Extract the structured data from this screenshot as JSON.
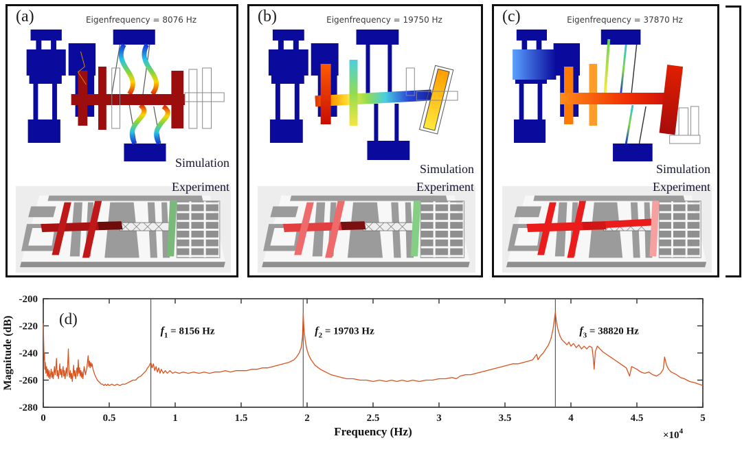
{
  "panels": [
    {
      "label": "(a)",
      "title": "Eigenfrequency = 8076 Hz",
      "eigenfrequency_hz": 8076,
      "sim_label": "Simulation",
      "exp_label": "Experiment",
      "colors": {
        "anchor": "#0a0a9c",
        "beam": "#9c0d0d",
        "experiment_cross": "#a81212",
        "experiment_side_bar": "#79b979"
      }
    },
    {
      "label": "(b)",
      "title": "Eigenfrequency = 19750 Hz",
      "eigenfrequency_hz": 19750,
      "sim_label": "Simulation",
      "exp_label": "Experiment",
      "colors": {
        "anchor": "#0a0a9c",
        "beam": "rainbow",
        "experiment_cross": "#e24040",
        "experiment_side_bar": "#84cf84"
      }
    },
    {
      "label": "(c)",
      "title": "Eigenfrequency = 37870 Hz",
      "eigenfrequency_hz": 37870,
      "sim_label": "Simulation",
      "exp_label": "Experiment",
      "colors": {
        "anchor": "#0a0a9c",
        "beam": "#ff8c1a",
        "experiment_cross": "#ea1c1c",
        "experiment_side_bar": "#f6a0a0"
      }
    }
  ],
  "chart_data": {
    "type": "line",
    "panel_label": "(d)",
    "xlabel": "Frequency (Hz)",
    "ylabel": "Magnitude (dB)",
    "x_scale_label": {
      "base": "×10",
      "exponent": "4"
    },
    "xlim": [
      0,
      50000
    ],
    "ylim": [
      -280,
      -200
    ],
    "x_ticks": {
      "values": [
        0,
        5000,
        10000,
        15000,
        20000,
        25000,
        30000,
        35000,
        40000,
        45000,
        50000
      ],
      "labels": [
        "0",
        "0.5",
        "1",
        "1.5",
        "2",
        "2.5",
        "3",
        "3.5",
        "4",
        "4.5",
        "5"
      ]
    },
    "y_ticks": {
      "values": [
        -200,
        -220,
        -240,
        -260,
        -280
      ],
      "labels": [
        "-200",
        "-220",
        "-240",
        "-260",
        "-280"
      ]
    },
    "line_color": "#d9531e",
    "marker_line_color": "#4a4a4a",
    "grid": false,
    "legend": false,
    "peaks": [
      {
        "x_hz": 8156,
        "sym": "f",
        "sub": "1",
        "text": " = 8156 Hz",
        "label_dx": 14,
        "label_db": -226
      },
      {
        "x_hz": 19703,
        "sym": "f",
        "sub": "2",
        "text": " = 19703 Hz",
        "label_dx": 17,
        "label_db": -226
      },
      {
        "x_hz": 38820,
        "sym": "f",
        "sub": "3",
        "text": " = 38820 Hz",
        "label_dx": 35,
        "label_db": -226
      }
    ],
    "points": [
      [
        0,
        -218
      ],
      [
        30,
        -232
      ],
      [
        60,
        -245
      ],
      [
        90,
        -240
      ],
      [
        120,
        -252
      ],
      [
        150,
        -247
      ],
      [
        200,
        -255
      ],
      [
        250,
        -250
      ],
      [
        300,
        -257
      ],
      [
        350,
        -252
      ],
      [
        400,
        -258
      ],
      [
        450,
        -253
      ],
      [
        500,
        -259
      ],
      [
        550,
        -256
      ],
      [
        600,
        -252
      ],
      [
        650,
        -258
      ],
      [
        700,
        -254
      ],
      [
        750,
        -259
      ],
      [
        800,
        -255
      ],
      [
        850,
        -250
      ],
      [
        900,
        -256
      ],
      [
        950,
        -252
      ],
      [
        1000,
        -244
      ],
      [
        1050,
        -257
      ],
      [
        1100,
        -253
      ],
      [
        1150,
        -259
      ],
      [
        1200,
        -255
      ],
      [
        1250,
        -248
      ],
      [
        1300,
        -256
      ],
      [
        1350,
        -252
      ],
      [
        1400,
        -258
      ],
      [
        1450,
        -254
      ],
      [
        1500,
        -250
      ],
      [
        1550,
        -257
      ],
      [
        1600,
        -253
      ],
      [
        1650,
        -259
      ],
      [
        1700,
        -255
      ],
      [
        1750,
        -251
      ],
      [
        1800,
        -257
      ],
      [
        1850,
        -249
      ],
      [
        1900,
        -237
      ],
      [
        1950,
        -254
      ],
      [
        2000,
        -258
      ],
      [
        2050,
        -253
      ],
      [
        2100,
        -259
      ],
      [
        2150,
        -255
      ],
      [
        2200,
        -261
      ],
      [
        2250,
        -256
      ],
      [
        2300,
        -249
      ],
      [
        2350,
        -257
      ],
      [
        2400,
        -253
      ],
      [
        2450,
        -259
      ],
      [
        2500,
        -255
      ],
      [
        2550,
        -251
      ],
      [
        2600,
        -257
      ],
      [
        2650,
        -245
      ],
      [
        2700,
        -255
      ],
      [
        2750,
        -251
      ],
      [
        2800,
        -257
      ],
      [
        2850,
        -253
      ],
      [
        2900,
        -258
      ],
      [
        2950,
        -254
      ],
      [
        3000,
        -259
      ],
      [
        3100,
        -250
      ],
      [
        3200,
        -256
      ],
      [
        3300,
        -251
      ],
      [
        3400,
        -242
      ],
      [
        3450,
        -250
      ],
      [
        3500,
        -246
      ],
      [
        3550,
        -251
      ],
      [
        3600,
        -247
      ],
      [
        3650,
        -250
      ],
      [
        3700,
        -248
      ],
      [
        3750,
        -251
      ],
      [
        3800,
        -253
      ],
      [
        3900,
        -256
      ],
      [
        4000,
        -258
      ],
      [
        4100,
        -260
      ],
      [
        4200,
        -261
      ],
      [
        4300,
        -262
      ],
      [
        4400,
        -263
      ],
      [
        4500,
        -263
      ],
      [
        4600,
        -264
      ],
      [
        4700,
        -263
      ],
      [
        4800,
        -264
      ],
      [
        4900,
        -263
      ],
      [
        5000,
        -264
      ],
      [
        5200,
        -263
      ],
      [
        5400,
        -264
      ],
      [
        5600,
        -263
      ],
      [
        5800,
        -264
      ],
      [
        6000,
        -263
      ],
      [
        6200,
        -263
      ],
      [
        6400,
        -262
      ],
      [
        6600,
        -261
      ],
      [
        6800,
        -260
      ],
      [
        7000,
        -260
      ],
      [
        7200,
        -258
      ],
      [
        7400,
        -257
      ],
      [
        7600,
        -255
      ],
      [
        7800,
        -253
      ],
      [
        7900,
        -251
      ],
      [
        8000,
        -250
      ],
      [
        8100,
        -248
      ],
      [
        8156,
        -247
      ],
      [
        8250,
        -251
      ],
      [
        8350,
        -248
      ],
      [
        8450,
        -253
      ],
      [
        8550,
        -250
      ],
      [
        8650,
        -254
      ],
      [
        8750,
        -251
      ],
      [
        8850,
        -255
      ],
      [
        8950,
        -252
      ],
      [
        9100,
        -255
      ],
      [
        9250,
        -253
      ],
      [
        9400,
        -255
      ],
      [
        9600,
        -253
      ],
      [
        9800,
        -255
      ],
      [
        10000,
        -254
      ],
      [
        10300,
        -255
      ],
      [
        10600,
        -254
      ],
      [
        11000,
        -255
      ],
      [
        11400,
        -254
      ],
      [
        11800,
        -255
      ],
      [
        12200,
        -254
      ],
      [
        12600,
        -255
      ],
      [
        13000,
        -254
      ],
      [
        13400,
        -254
      ],
      [
        13800,
        -253
      ],
      [
        14200,
        -254
      ],
      [
        14600,
        -253
      ],
      [
        15000,
        -253
      ],
      [
        15400,
        -253
      ],
      [
        15800,
        -252
      ],
      [
        16200,
        -252
      ],
      [
        16600,
        -251
      ],
      [
        17000,
        -251
      ],
      [
        17400,
        -250
      ],
      [
        17800,
        -249
      ],
      [
        18200,
        -248
      ],
      [
        18600,
        -247
      ],
      [
        19000,
        -245
      ],
      [
        19200,
        -243
      ],
      [
        19400,
        -240
      ],
      [
        19550,
        -236
      ],
      [
        19650,
        -228
      ],
      [
        19703,
        -211
      ],
      [
        19760,
        -222
      ],
      [
        19850,
        -230
      ],
      [
        19950,
        -236
      ],
      [
        20100,
        -241
      ],
      [
        20300,
        -245
      ],
      [
        20600,
        -249
      ],
      [
        21000,
        -252
      ],
      [
        21400,
        -254
      ],
      [
        21800,
        -256
      ],
      [
        22200,
        -257
      ],
      [
        22600,
        -258
      ],
      [
        23000,
        -259
      ],
      [
        23500,
        -259
      ],
      [
        24000,
        -260
      ],
      [
        24500,
        -260
      ],
      [
        25000,
        -261
      ],
      [
        25500,
        -260
      ],
      [
        26000,
        -261
      ],
      [
        26400,
        -260
      ],
      [
        26800,
        -261
      ],
      [
        27200,
        -260
      ],
      [
        27600,
        -261
      ],
      [
        28000,
        -260
      ],
      [
        28500,
        -261
      ],
      [
        29000,
        -260
      ],
      [
        29500,
        -260
      ],
      [
        30000,
        -259
      ],
      [
        30500,
        -259
      ],
      [
        31000,
        -258
      ],
      [
        31300,
        -259
      ],
      [
        31600,
        -257
      ],
      [
        32000,
        -256
      ],
      [
        32400,
        -256
      ],
      [
        32800,
        -255
      ],
      [
        33200,
        -254
      ],
      [
        33600,
        -253
      ],
      [
        34000,
        -252
      ],
      [
        34400,
        -251
      ],
      [
        34800,
        -250
      ],
      [
        35200,
        -249
      ],
      [
        35600,
        -248
      ],
      [
        36000,
        -248
      ],
      [
        36400,
        -247
      ],
      [
        36800,
        -246
      ],
      [
        37100,
        -245
      ],
      [
        37400,
        -241
      ],
      [
        37500,
        -245
      ],
      [
        37700,
        -242
      ],
      [
        37900,
        -240
      ],
      [
        38100,
        -237
      ],
      [
        38300,
        -234
      ],
      [
        38500,
        -229
      ],
      [
        38650,
        -222
      ],
      [
        38820,
        -210
      ],
      [
        38900,
        -217
      ],
      [
        39000,
        -222
      ],
      [
        39150,
        -227
      ],
      [
        39300,
        -230
      ],
      [
        39500,
        -232
      ],
      [
        39700,
        -234
      ],
      [
        39850,
        -232
      ],
      [
        40000,
        -235
      ],
      [
        40200,
        -233
      ],
      [
        40400,
        -236
      ],
      [
        40600,
        -234
      ],
      [
        40800,
        -237
      ],
      [
        41000,
        -235
      ],
      [
        41200,
        -237
      ],
      [
        41400,
        -235
      ],
      [
        41600,
        -236
      ],
      [
        41700,
        -244
      ],
      [
        41760,
        -252
      ],
      [
        41850,
        -239
      ],
      [
        42000,
        -235
      ],
      [
        42200,
        -237
      ],
      [
        42400,
        -239
      ],
      [
        42700,
        -241
      ],
      [
        43000,
        -243
      ],
      [
        43300,
        -245
      ],
      [
        43600,
        -247
      ],
      [
        43900,
        -249
      ],
      [
        44200,
        -251
      ],
      [
        44450,
        -257
      ],
      [
        44600,
        -250
      ],
      [
        44800,
        -251
      ],
      [
        45000,
        -252
      ],
      [
        45300,
        -254
      ],
      [
        45600,
        -255
      ],
      [
        45900,
        -254
      ],
      [
        46200,
        -256
      ],
      [
        46500,
        -257
      ],
      [
        46800,
        -255
      ],
      [
        47000,
        -252
      ],
      [
        47100,
        -243
      ],
      [
        47250,
        -249
      ],
      [
        47400,
        -252
      ],
      [
        47600,
        -254
      ],
      [
        47800,
        -255
      ],
      [
        48000,
        -256
      ],
      [
        48300,
        -258
      ],
      [
        48600,
        -259
      ],
      [
        49000,
        -261
      ],
      [
        49400,
        -262
      ],
      [
        49700,
        -263
      ],
      [
        50000,
        -264
      ]
    ]
  }
}
